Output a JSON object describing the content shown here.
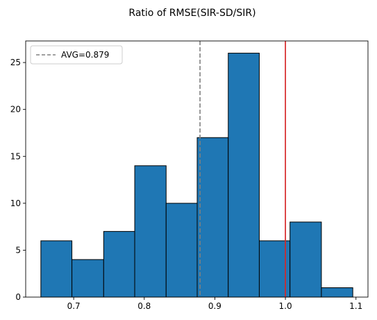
{
  "chart_data": {
    "type": "histogram",
    "title": "Ratio of RMSE(SIR-SD/SIR)",
    "xlabel": "",
    "ylabel": "",
    "bin_edges": [
      0.6535,
      0.6975,
      0.7425,
      0.7865,
      0.831,
      0.875,
      0.919,
      0.963,
      1.0065,
      1.051,
      1.0955
    ],
    "counts": [
      6,
      4,
      7,
      14,
      10,
      17,
      26,
      6,
      8,
      1
    ],
    "xlim": [
      0.632,
      1.117
    ],
    "ylim": [
      0,
      27.3
    ],
    "x_ticks": [
      0.7,
      0.8,
      0.9,
      1.0,
      1.1
    ],
    "x_tick_labels": [
      "0.7",
      "0.8",
      "0.9",
      "1.0",
      "1.1"
    ],
    "y_ticks": [
      0,
      5,
      10,
      15,
      20,
      25
    ],
    "y_tick_labels": [
      "0",
      "5",
      "10",
      "15",
      "20",
      "25"
    ],
    "bar_color": "#1f77b4",
    "bar_edge_color": "#000000",
    "reference_lines": [
      {
        "x": 0.879,
        "color": "#808080",
        "style": "dashed",
        "label": "AVG=0.879"
      },
      {
        "x": 1.0,
        "color": "#d62728",
        "style": "solid",
        "label": ""
      }
    ],
    "legend": {
      "position": "top-left",
      "entries": [
        "AVG=0.879"
      ]
    },
    "grid": false
  }
}
